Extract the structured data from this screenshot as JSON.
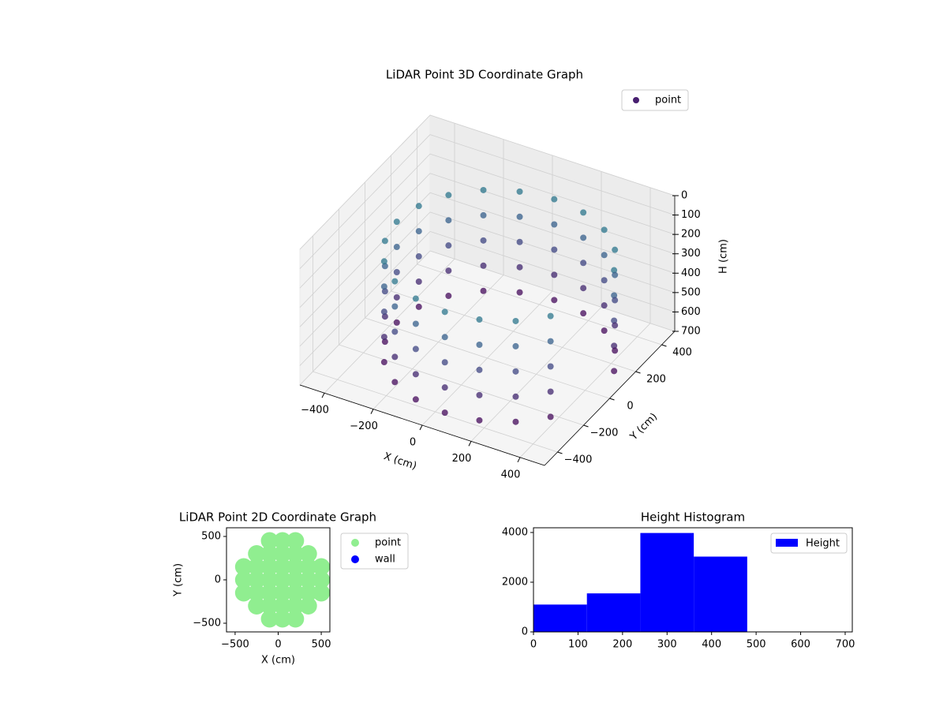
{
  "chart_data": [
    {
      "type": "scatter3d",
      "title": "LiDAR Point 3D Coordinate Graph",
      "x_label": "X (cm)",
      "y_label": "Y (cm)",
      "z_label": "H (cm)",
      "xlim": [
        -500,
        500
      ],
      "ylim": [
        -500,
        500
      ],
      "zlim": [
        0,
        700
      ],
      "z_inverted": true,
      "xticks": [
        {
          "value": -400,
          "label": "−400"
        },
        {
          "value": -200,
          "label": "−200"
        },
        0,
        200,
        400
      ],
      "yticks": [
        {
          "value": -400,
          "label": "−400"
        },
        {
          "value": -200,
          "label": "−200"
        },
        0,
        200,
        400
      ],
      "zticks": [
        0,
        100,
        200,
        300,
        400,
        500,
        600,
        700
      ],
      "grid": true,
      "legend": "upper right",
      "colormap": [
        "#440154",
        "#3b528b",
        "#21918c"
      ],
      "series": [
        {
          "name": "point",
          "color": "#481f70",
          "x": [
            449,
            449,
            449,
            449,
            449,
            390,
            390,
            390,
            390,
            390,
            297,
            297,
            297,
            297,
            297,
            180,
            180,
            180,
            180,
            180,
            50,
            50,
            50,
            50,
            50,
            -80,
            -80,
            -80,
            -80,
            -80,
            -197,
            -197,
            -197,
            -197,
            -197,
            -290,
            -290,
            -290,
            -290,
            -290,
            -349,
            -349,
            -349,
            -349,
            -349,
            -370,
            -370,
            -370,
            -370,
            -370,
            -349,
            -349,
            -349,
            -349,
            -349,
            -290,
            -290,
            -290,
            -290,
            -290,
            -197,
            -197,
            -197,
            -197,
            -197,
            -80,
            -80,
            -80,
            -80,
            -80,
            50,
            50,
            50,
            50,
            50,
            180,
            180,
            180,
            180,
            180,
            297,
            297,
            297,
            297,
            297,
            390,
            390,
            390,
            390,
            390
          ],
          "y": [
            130,
            130,
            130,
            130,
            130,
            247,
            247,
            247,
            247,
            247,
            340,
            340,
            340,
            340,
            340,
            399,
            399,
            399,
            399,
            399,
            420,
            420,
            420,
            420,
            420,
            399,
            399,
            399,
            399,
            399,
            340,
            340,
            340,
            340,
            340,
            247,
            247,
            247,
            247,
            247,
            130,
            130,
            130,
            130,
            130,
            0,
            0,
            0,
            0,
            0,
            -130,
            -130,
            -130,
            -130,
            -130,
            -247,
            -247,
            -247,
            -247,
            -247,
            -340,
            -340,
            -340,
            -340,
            -340,
            -399,
            -399,
            -399,
            -399,
            -399,
            -420,
            -420,
            -420,
            -420,
            -420,
            -399,
            -399,
            -399,
            -399,
            -399,
            -340,
            -340,
            -340,
            -340,
            -340,
            -247,
            -247,
            -247,
            -247,
            -247
          ],
          "z": [
            150,
            280,
            410,
            540,
            670,
            150,
            280,
            410,
            540,
            670,
            150,
            280,
            410,
            540,
            670,
            150,
            280,
            410,
            540,
            670,
            150,
            280,
            410,
            540,
            670,
            150,
            280,
            410,
            540,
            670,
            150,
            280,
            410,
            540,
            670,
            150,
            280,
            410,
            540,
            670,
            150,
            280,
            410,
            540,
            670,
            150,
            280,
            410,
            540,
            670,
            150,
            280,
            410,
            540,
            670,
            150,
            280,
            410,
            540,
            670,
            150,
            280,
            410,
            540,
            670,
            150,
            280,
            410,
            540,
            670,
            150,
            280,
            410,
            540,
            670,
            150,
            280,
            410,
            540,
            670,
            150,
            280,
            410,
            540,
            670,
            150,
            280,
            410,
            540,
            670
          ]
        }
      ]
    },
    {
      "type": "scatter",
      "title": "LiDAR Point 2D Coordinate Graph",
      "x_label": "X (cm)",
      "y_label": "Y (cm)",
      "xlim": [
        -600,
        600
      ],
      "ylim": [
        -600,
        600
      ],
      "xticks": [
        {
          "value": -500,
          "label": "−500"
        },
        0,
        500
      ],
      "yticks": [
        {
          "value": -500,
          "label": "−500"
        },
        0,
        500
      ],
      "legend": "outside upper right",
      "series": [
        {
          "name": "point",
          "color": "#90ee90",
          "x": [
            -400,
            -400,
            -400,
            -250,
            -250,
            -250,
            -250,
            -250,
            -100,
            -100,
            -100,
            -100,
            -100,
            -100,
            -100,
            50,
            50,
            50,
            50,
            50,
            50,
            50,
            200,
            200,
            200,
            200,
            200,
            200,
            200,
            350,
            350,
            350,
            350,
            350,
            500,
            500,
            500
          ],
          "values": [
            -150,
            0,
            150,
            -300,
            -150,
            0,
            150,
            300,
            -450,
            -300,
            -150,
            0,
            150,
            300,
            450,
            -450,
            -300,
            -150,
            0,
            150,
            300,
            450,
            -450,
            -300,
            -150,
            0,
            150,
            300,
            450,
            -300,
            -150,
            0,
            150,
            300,
            -150,
            0,
            150
          ]
        },
        {
          "name": "wall",
          "color": "#0000ff",
          "x": [],
          "values": []
        }
      ]
    },
    {
      "type": "histogram",
      "title": "Height Histogram",
      "color": "#0000ff",
      "legend": "upper right",
      "series_name": "Height",
      "bins": [
        0,
        120,
        240,
        360,
        480,
        600,
        720
      ],
      "values": [
        1100,
        1550,
        3980,
        3030,
        0,
        0
      ],
      "xlim": [
        0,
        716
      ],
      "ylim": [
        0,
        4190
      ],
      "xticks": [
        0,
        100,
        200,
        300,
        400,
        500,
        600,
        700
      ],
      "yticks": [
        0,
        2000,
        4000
      ]
    }
  ]
}
